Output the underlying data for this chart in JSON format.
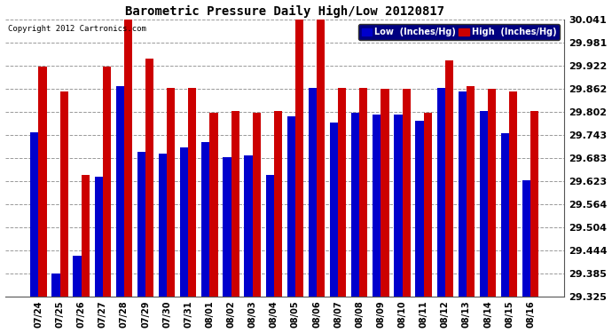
{
  "title": "Barometric Pressure Daily High/Low 20120817",
  "copyright": "Copyright 2012 Cartronics.com",
  "dates": [
    "07/24",
    "07/25",
    "07/26",
    "07/27",
    "07/28",
    "07/29",
    "07/30",
    "07/31",
    "08/01",
    "08/02",
    "08/03",
    "08/04",
    "08/05",
    "08/06",
    "08/07",
    "08/08",
    "08/09",
    "08/10",
    "08/11",
    "08/12",
    "08/13",
    "08/14",
    "08/15",
    "08/16"
  ],
  "low": [
    29.75,
    29.385,
    29.43,
    29.635,
    29.87,
    29.7,
    29.695,
    29.71,
    29.725,
    29.685,
    29.69,
    29.64,
    29.79,
    29.865,
    29.775,
    29.8,
    29.795,
    29.795,
    29.78,
    29.865,
    29.855,
    29.805,
    29.748,
    29.625
  ],
  "high": [
    29.92,
    29.855,
    29.64,
    29.92,
    30.041,
    29.94,
    29.865,
    29.865,
    29.8,
    29.805,
    29.8,
    29.805,
    30.041,
    30.041,
    29.865,
    29.865,
    29.862,
    29.862,
    29.8,
    29.935,
    29.87,
    29.862,
    29.855,
    29.805
  ],
  "ylim_min": 29.325,
  "ylim_max": 30.041,
  "yticks": [
    29.325,
    29.385,
    29.444,
    29.504,
    29.564,
    29.623,
    29.683,
    29.743,
    29.802,
    29.862,
    29.922,
    29.981,
    30.041
  ],
  "low_color": "#0000cc",
  "high_color": "#cc0000",
  "bg_color": "#ffffff",
  "grid_color": "#999999",
  "bar_width": 0.38,
  "legend_low_label": "Low  (Inches/Hg)",
  "legend_high_label": "High  (Inches/Hg)"
}
